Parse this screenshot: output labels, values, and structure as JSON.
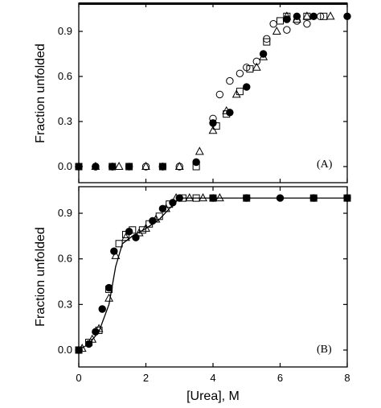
{
  "chart_data": [
    {
      "type": "scatter",
      "panel_label": "(A)",
      "ylabel": "Fraction unfolded",
      "xlabel": "",
      "xlim": [
        0,
        8
      ],
      "ylim": [
        0,
        1.0
      ],
      "yticks": [
        "0.0",
        "0.3",
        "0.6",
        "0.9"
      ],
      "grid": false,
      "series": [
        {
          "marker": "filled-circle",
          "points": [
            [
              0,
              0
            ],
            [
              0.5,
              0
            ],
            [
              1.0,
              0
            ],
            [
              1.5,
              0
            ],
            [
              2.5,
              0
            ],
            [
              3.5,
              0.03
            ],
            [
              4.0,
              0.29
            ],
            [
              4.5,
              0.36
            ],
            [
              5.0,
              0.53
            ],
            [
              5.5,
              0.75
            ],
            [
              6.2,
              0.98
            ],
            [
              6.5,
              1.0
            ],
            [
              7.0,
              1.0
            ],
            [
              8.0,
              1.0
            ]
          ]
        },
        {
          "marker": "open-circle",
          "points": [
            [
              0,
              0
            ],
            [
              0.5,
              0
            ],
            [
              1.0,
              0
            ],
            [
              2.0,
              0
            ],
            [
              2.5,
              0
            ],
            [
              3.0,
              0
            ],
            [
              3.5,
              0.03
            ],
            [
              4.0,
              0.32
            ],
            [
              4.2,
              0.48
            ],
            [
              4.5,
              0.57
            ],
            [
              4.8,
              0.62
            ],
            [
              5.0,
              0.66
            ],
            [
              5.3,
              0.7
            ],
            [
              5.6,
              0.85
            ],
            [
              5.8,
              0.95
            ],
            [
              6.2,
              0.91
            ],
            [
              6.5,
              0.97
            ],
            [
              6.8,
              0.95
            ],
            [
              7.2,
              1.0
            ]
          ]
        },
        {
          "marker": "open-square",
          "points": [
            [
              0,
              0
            ],
            [
              1.0,
              0
            ],
            [
              1.5,
              0
            ],
            [
              2.5,
              0
            ],
            [
              3.5,
              0
            ],
            [
              4.1,
              0.27
            ],
            [
              4.4,
              0.35
            ],
            [
              4.8,
              0.5
            ],
            [
              5.1,
              0.65
            ],
            [
              5.6,
              0.83
            ],
            [
              6.0,
              0.97
            ],
            [
              6.2,
              1.0
            ],
            [
              6.8,
              1.0
            ],
            [
              7.3,
              1.0
            ]
          ]
        },
        {
          "marker": "open-triangle",
          "points": [
            [
              0.5,
              0
            ],
            [
              1.2,
              0
            ],
            [
              2.0,
              0
            ],
            [
              3.0,
              0
            ],
            [
              3.6,
              0.1
            ],
            [
              4.0,
              0.24
            ],
            [
              4.4,
              0.37
            ],
            [
              4.7,
              0.48
            ],
            [
              5.3,
              0.66
            ],
            [
              5.5,
              0.73
            ],
            [
              5.9,
              0.9
            ],
            [
              6.2,
              1.0
            ],
            [
              6.5,
              0.98
            ],
            [
              6.8,
              1.0
            ],
            [
              7.5,
              1.0
            ]
          ]
        }
      ]
    },
    {
      "type": "scatter",
      "panel_label": "(B)",
      "ylabel": "Fraction unfolded",
      "xlabel": "[Urea], M",
      "xlim": [
        0,
        8
      ],
      "ylim": [
        0,
        1.0
      ],
      "xticks": [
        "0",
        "2",
        "4",
        "6",
        "8"
      ],
      "yticks": [
        "0.0",
        "0.3",
        "0.6",
        "0.9"
      ],
      "grid": false,
      "fit_line": [
        [
          0,
          0
        ],
        [
          0.3,
          0.04
        ],
        [
          0.6,
          0.12
        ],
        [
          0.9,
          0.3
        ],
        [
          1.1,
          0.55
        ],
        [
          1.3,
          0.7
        ],
        [
          1.6,
          0.75
        ],
        [
          2.0,
          0.8
        ],
        [
          2.4,
          0.86
        ],
        [
          2.7,
          0.93
        ],
        [
          3.0,
          1.0
        ],
        [
          4.0,
          1.0
        ],
        [
          8.0,
          1.0
        ]
      ],
      "series": [
        {
          "marker": "filled-circle",
          "points": [
            [
              0,
              0
            ],
            [
              0.3,
              0.04
            ],
            [
              0.5,
              0.12
            ],
            [
              0.7,
              0.27
            ],
            [
              0.9,
              0.41
            ],
            [
              1.05,
              0.65
            ],
            [
              1.5,
              0.78
            ],
            [
              1.7,
              0.74
            ],
            [
              2.2,
              0.85
            ],
            [
              2.5,
              0.93
            ],
            [
              2.8,
              0.97
            ],
            [
              3.0,
              1.0
            ],
            [
              4.0,
              1.0
            ],
            [
              5.0,
              1.0
            ],
            [
              6.0,
              1.0
            ],
            [
              7.0,
              1.0
            ],
            [
              8.0,
              1.0
            ]
          ]
        },
        {
          "marker": "open-square",
          "points": [
            [
              0,
              0
            ],
            [
              0.3,
              0.05
            ],
            [
              0.6,
              0.13
            ],
            [
              0.9,
              0.4
            ],
            [
              1.2,
              0.7
            ],
            [
              1.4,
              0.76
            ],
            [
              1.6,
              0.79
            ],
            [
              1.9,
              0.79
            ],
            [
              2.1,
              0.83
            ],
            [
              2.4,
              0.88
            ],
            [
              2.7,
              0.96
            ],
            [
              3.1,
              1.0
            ],
            [
              3.5,
              1.0
            ],
            [
              4.0,
              1.0
            ],
            [
              5.0,
              1.0
            ],
            [
              7.0,
              1.0
            ],
            [
              8.0,
              1.0
            ]
          ]
        },
        {
          "marker": "open-triangle",
          "points": [
            [
              0.1,
              0.01
            ],
            [
              0.4,
              0.07
            ],
            [
              0.6,
              0.14
            ],
            [
              0.9,
              0.34
            ],
            [
              1.1,
              0.62
            ],
            [
              1.4,
              0.74
            ],
            [
              1.8,
              0.77
            ],
            [
              2.0,
              0.8
            ],
            [
              2.3,
              0.86
            ],
            [
              2.6,
              0.93
            ],
            [
              2.9,
              1.0
            ],
            [
              3.3,
              1.0
            ],
            [
              3.7,
              1.0
            ],
            [
              4.2,
              1.0
            ]
          ]
        }
      ]
    }
  ]
}
